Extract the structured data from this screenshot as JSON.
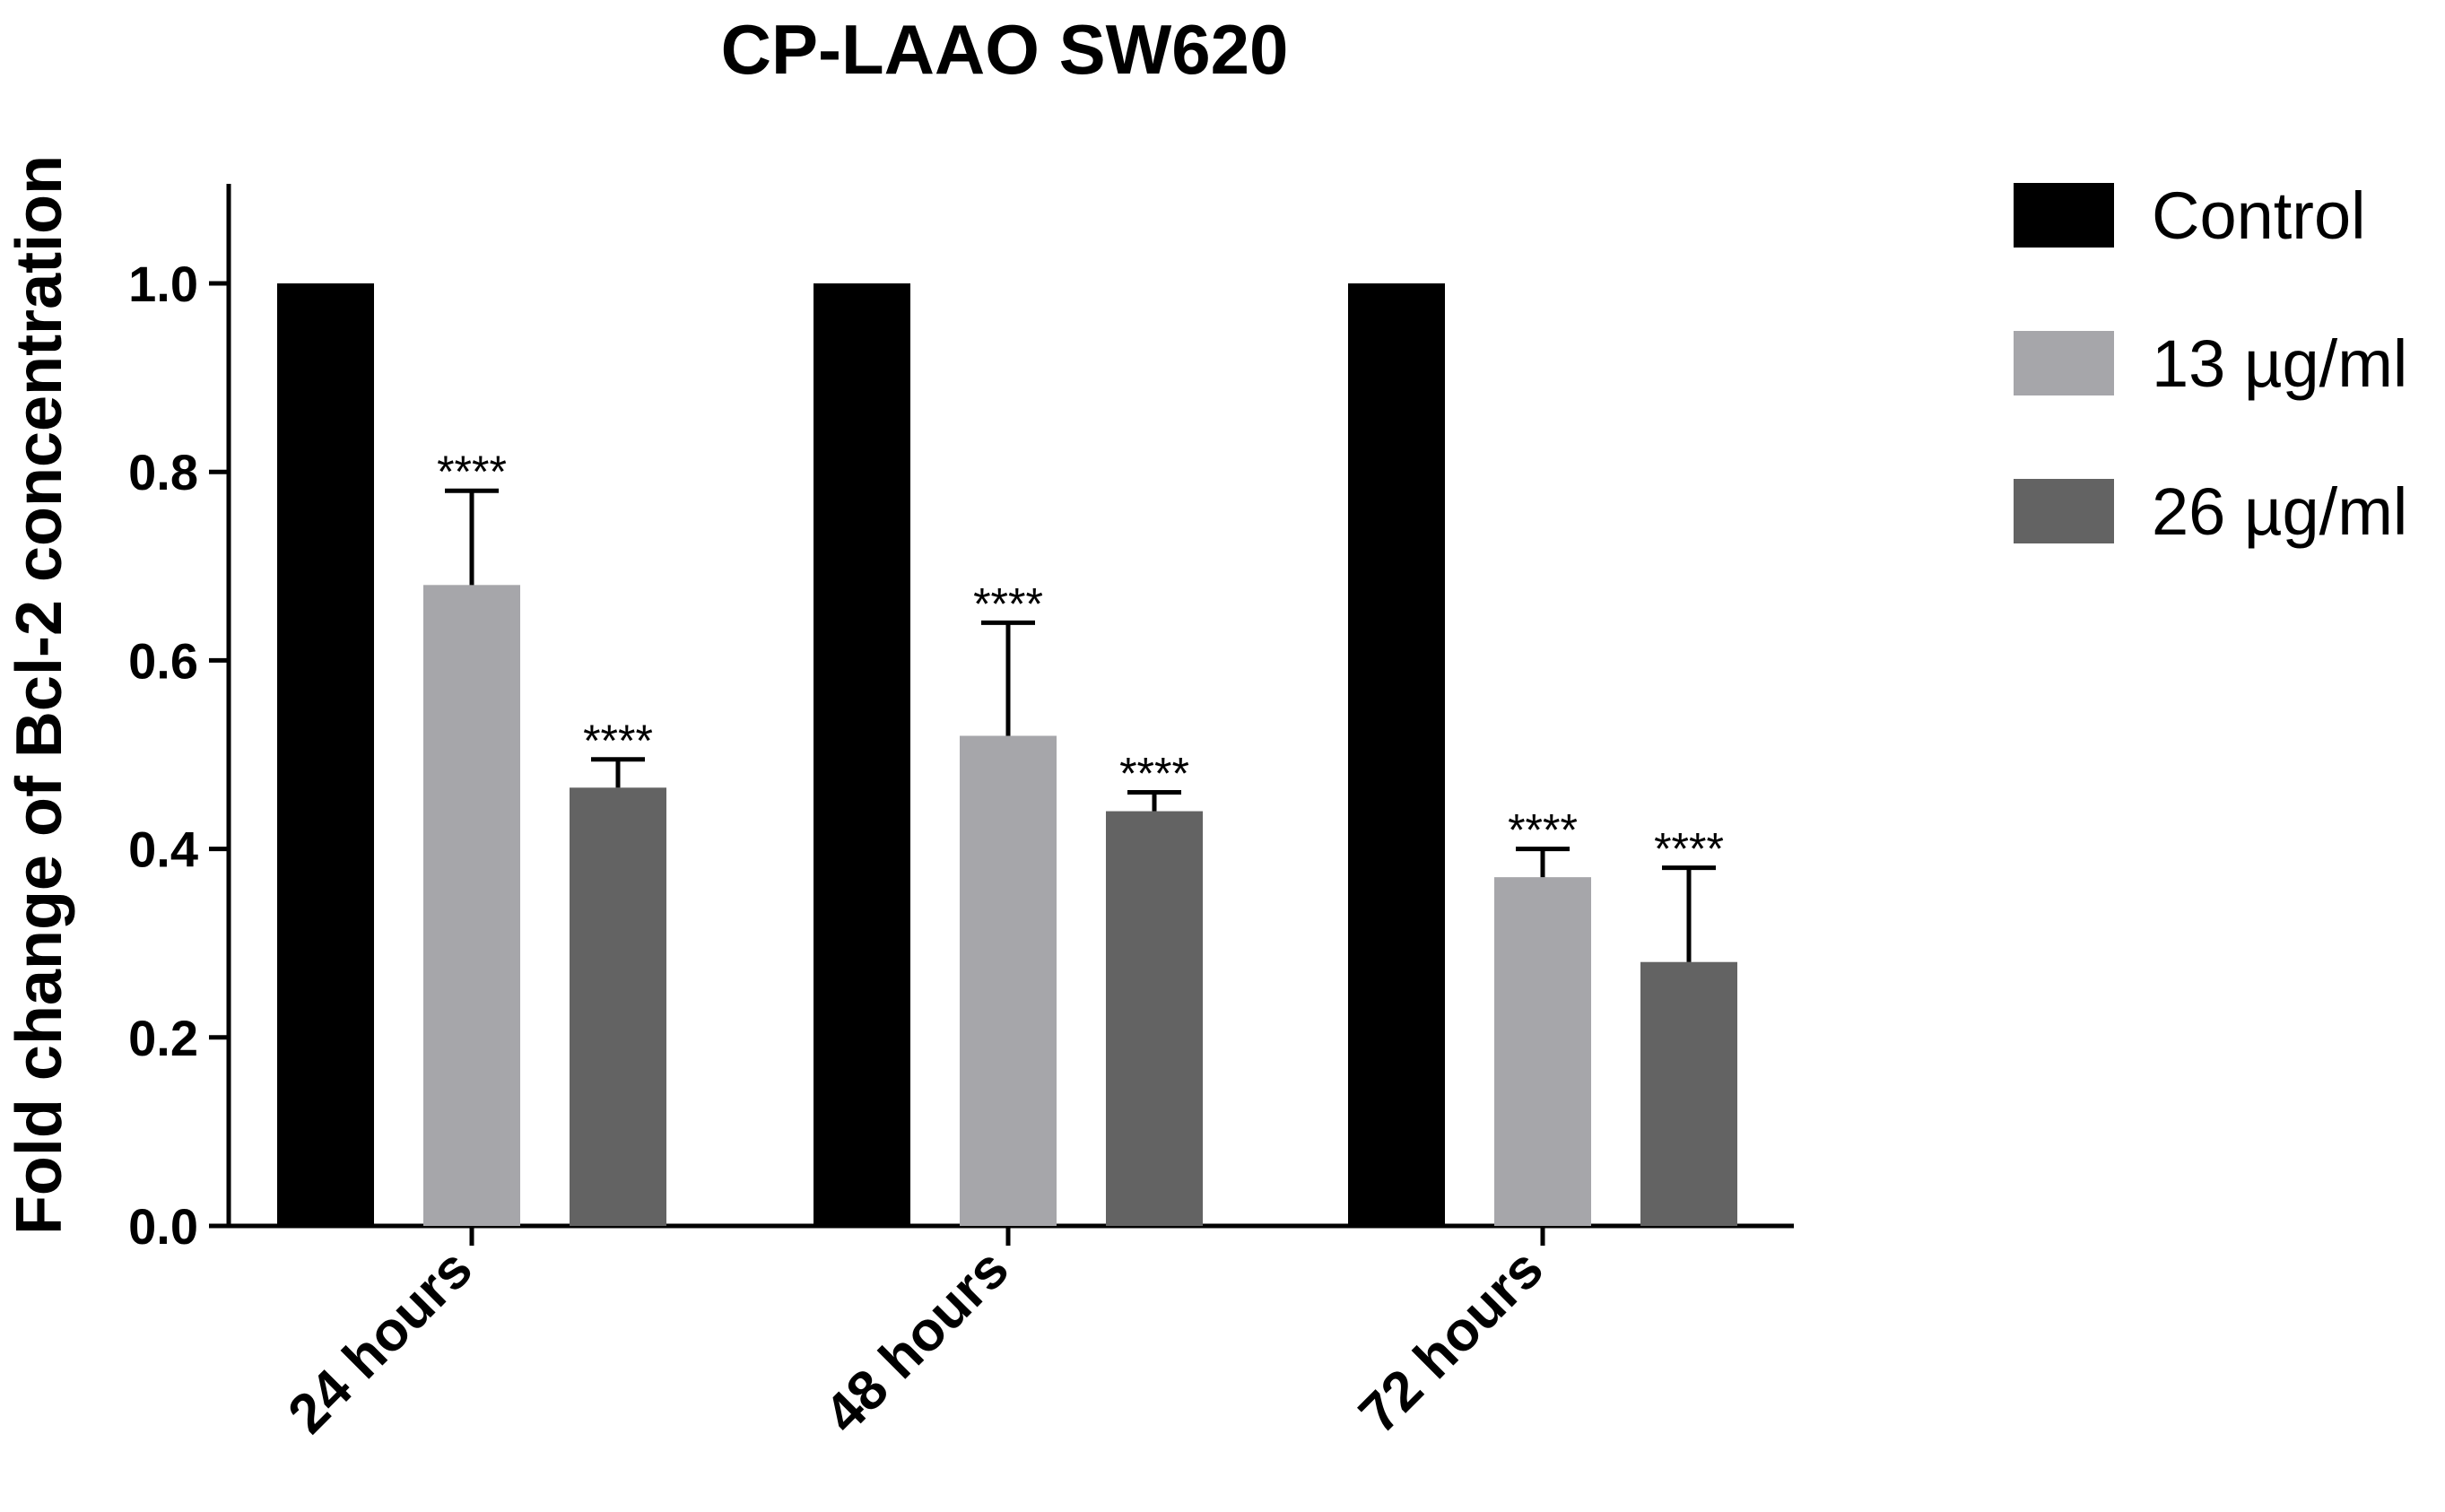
{
  "chart_data": {
    "type": "bar",
    "title": "CP-LAAO  SW620",
    "xlabel": "",
    "ylabel": "Fold change of Bcl-2 concentration",
    "categories": [
      "24 hours",
      "48 hours",
      "72 hours"
    ],
    "ylim": [
      0,
      1.1
    ],
    "yticks": [
      0.0,
      0.2,
      0.4,
      0.6,
      0.8,
      1.0
    ],
    "ytick_labels": [
      "0.0",
      "0.2",
      "0.4",
      "0.6",
      "0.8",
      "1.0"
    ],
    "legend_position": "top-right",
    "series": [
      {
        "name": "Control",
        "color": "#000000",
        "values": [
          1.0,
          1.0,
          1.0
        ],
        "errors": [
          0,
          0,
          0
        ],
        "annotations": [
          "",
          "",
          ""
        ]
      },
      {
        "name": "13 µg/ml",
        "color": "#a6a6aa",
        "values": [
          0.68,
          0.52,
          0.37
        ],
        "errors": [
          0.1,
          0.12,
          0.03
        ],
        "annotations": [
          "****",
          "****",
          "****"
        ]
      },
      {
        "name": "26 µg/ml",
        "color": "#636363",
        "values": [
          0.465,
          0.44,
          0.28
        ],
        "errors": [
          0.03,
          0.02,
          0.1
        ],
        "annotations": [
          "****",
          "****",
          "****"
        ]
      }
    ]
  }
}
